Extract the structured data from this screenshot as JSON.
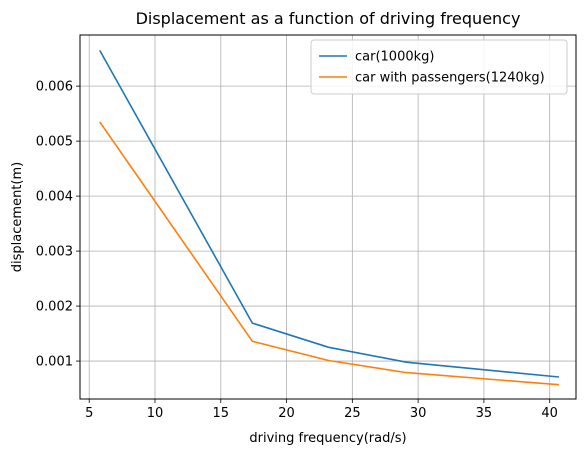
{
  "chart_data": {
    "type": "line",
    "title": "Displacement as a function of driving frequency",
    "xlabel": "driving frequency(rad/s)",
    "ylabel": "displacement(m)",
    "xlim": [
      4.3,
      42.0
    ],
    "ylim": [
      0.00031,
      0.00693
    ],
    "xticks": [
      5,
      10,
      15,
      20,
      25,
      30,
      35,
      40
    ],
    "xtick_labels": [
      "5",
      "10",
      "15",
      "20",
      "25",
      "30",
      "35",
      "40"
    ],
    "yticks": [
      0.001,
      0.002,
      0.003,
      0.004,
      0.005,
      0.006
    ],
    "ytick_labels": [
      "0.001",
      "0.002",
      "0.003",
      "0.004",
      "0.005",
      "0.006"
    ],
    "grid": true,
    "legend_position": "top-right",
    "x": [
      5.8,
      17.4,
      23.2,
      29.1,
      40.7
    ],
    "series": [
      {
        "name": "car(1000kg)",
        "color": "#1f77b4",
        "values": [
          0.00665,
          0.00169,
          0.00125,
          0.00098,
          0.00071
        ]
      },
      {
        "name": "car with passengers(1240kg)",
        "color": "#ff7f0e",
        "values": [
          0.00535,
          0.00136,
          0.00101,
          0.00079,
          0.00057
        ]
      }
    ]
  }
}
